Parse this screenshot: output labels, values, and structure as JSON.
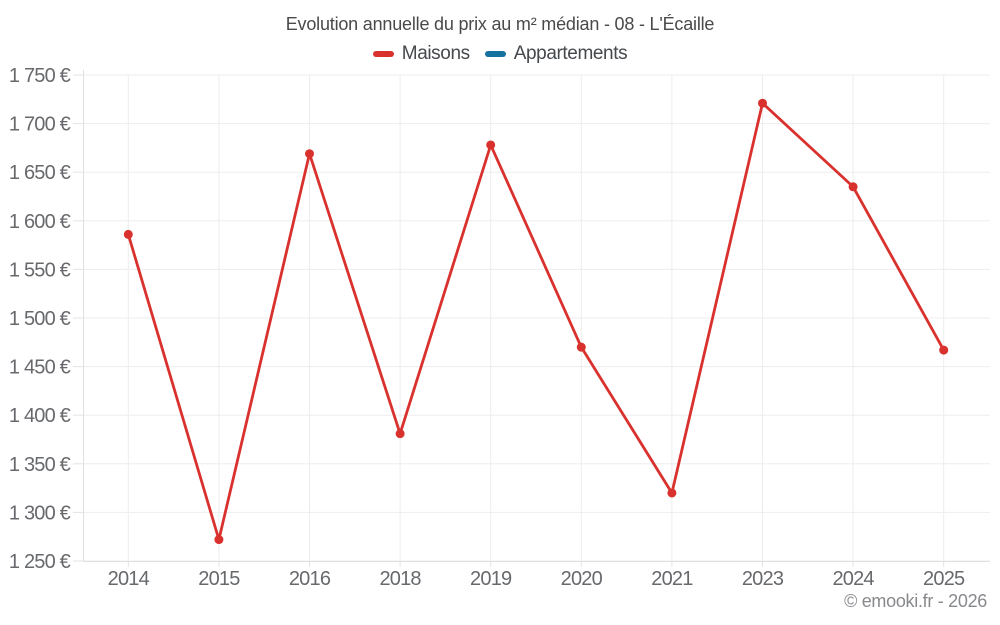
{
  "header": {
    "title": "Evolution annuelle du prix au m² médian - 08 - L'Écaille"
  },
  "legend": [
    {
      "label": "Maisons",
      "color": "#d9322e"
    },
    {
      "label": "Appartements",
      "color": "#17719f"
    }
  ],
  "footer": {
    "credit": "© emooki.fr - 2026"
  },
  "chart_data": {
    "type": "line",
    "title": "Evolution annuelle du prix au m² médian - 08 - L'Écaille",
    "categories": [
      "2014",
      "2015",
      "2016",
      "2018",
      "2019",
      "2020",
      "2021",
      "2023",
      "2024",
      "2025"
    ],
    "series": [
      {
        "name": "Maisons",
        "color": "#d9322e",
        "values": [
          1586,
          1272,
          1669,
          1381,
          1678,
          1470,
          1320,
          1721,
          1635,
          1467
        ]
      },
      {
        "name": "Appartements",
        "color": "#17719f",
        "values": []
      }
    ],
    "ylabel": "",
    "xlabel": "",
    "ylim": [
      1250,
      1750
    ],
    "ytick_step": 50,
    "ytick_labels": [
      "1 250 €",
      "1 300 €",
      "1 350 €",
      "1 400 €",
      "1 450 €",
      "1 500 €",
      "1 550 €",
      "1 600 €",
      "1 650 €",
      "1 700 €",
      "1 750 €"
    ],
    "grid": true,
    "legend_position": "top",
    "currency_suffix": " €"
  }
}
